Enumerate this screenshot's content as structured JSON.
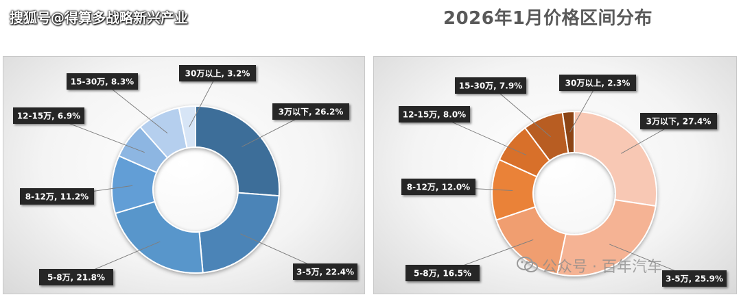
{
  "watermark_top": "搜狐号@得算多战略新兴产业",
  "watermark_bottom": "公众号 · 百年汽车",
  "chart_data": [
    {
      "type": "donut",
      "title": "",
      "colors": [
        "#3d6e99",
        "#4c84b7",
        "#5896cb",
        "#629ed6",
        "#8db6e2",
        "#b5cfee",
        "#d7e5f6"
      ],
      "segments": [
        {
          "label": "3万以下, 26.2%",
          "value": 26.2
        },
        {
          "label": "3-5万, 22.4%",
          "value": 22.4
        },
        {
          "label": "5-8万, 21.8%",
          "value": 21.8
        },
        {
          "label": "8-12万, 11.2%",
          "value": 11.2
        },
        {
          "label": "12-15万, 6.9%",
          "value": 6.9
        },
        {
          "label": "15-30万, 8.3%",
          "value": 8.3
        },
        {
          "label": "30万以上, 3.2%",
          "value": 3.2
        }
      ]
    },
    {
      "type": "donut",
      "title": "2026年1月价格区间分布",
      "colors": [
        "#f8c8b4",
        "#f5b394",
        "#f09e70",
        "#ea8239",
        "#d8702c",
        "#b85d21",
        "#8c4515"
      ],
      "segments": [
        {
          "label": "3万以下, 27.4%",
          "value": 27.4
        },
        {
          "label": "3-5万, 25.9%",
          "value": 25.9
        },
        {
          "label": "5-8万, 16.5%",
          "value": 16.5
        },
        {
          "label": "8-12万, 12.0%",
          "value": 12.0
        },
        {
          "label": "12-15万, 8.0%",
          "value": 8.0
        },
        {
          "label": "15-30万, 7.9%",
          "value": 7.9
        },
        {
          "label": "30万以上, 2.3%",
          "value": 2.3
        }
      ]
    }
  ]
}
